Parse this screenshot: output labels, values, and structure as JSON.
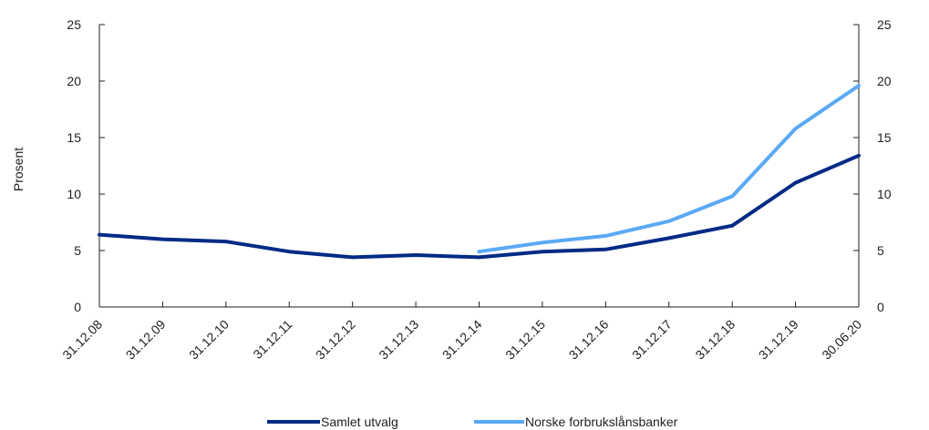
{
  "chart_data": {
    "type": "line",
    "ylabel": "Prosent",
    "ylim": [
      0,
      25
    ],
    "yticks": [
      "0",
      "5",
      "10",
      "15",
      "20",
      "25"
    ],
    "y_right_axis": true,
    "categories": [
      "31.12.08",
      "31.12.09",
      "31.12.10",
      "31.12.11",
      "31.12.12",
      "31.12.13",
      "31.12.14",
      "31.12.15",
      "31.12.16",
      "31.12.17",
      "31.12.18",
      "31.12.19",
      "30.06.20"
    ],
    "legend_position": "bottom",
    "grid": false,
    "series": [
      {
        "name": "Samlet utvalg",
        "color": "#002a86",
        "values": [
          6.4,
          6.0,
          5.8,
          4.9,
          4.4,
          4.6,
          4.4,
          4.9,
          5.1,
          6.1,
          7.2,
          11.0,
          13.4
        ]
      },
      {
        "name": "Norske forbrukslånsbanker",
        "color": "#5aa9f5",
        "values": [
          null,
          null,
          null,
          null,
          null,
          null,
          4.9,
          5.7,
          6.3,
          7.6,
          9.8,
          15.8,
          19.6
        ]
      }
    ]
  }
}
